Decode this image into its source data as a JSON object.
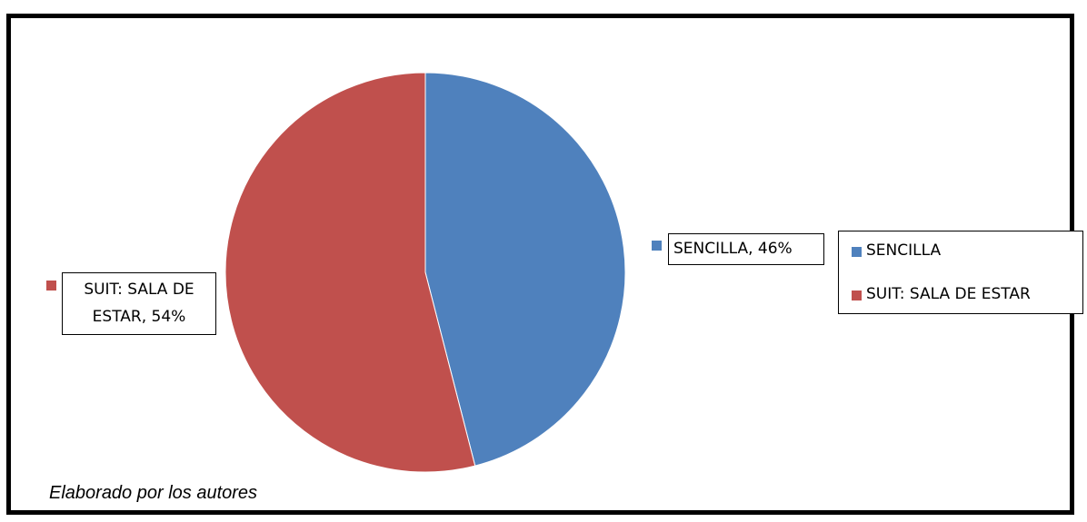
{
  "chart_data": {
    "type": "pie",
    "slices": [
      {
        "name": "SENCILLA",
        "value": 46,
        "label": "SENCILLA, 46%",
        "color": "#4F81BD"
      },
      {
        "name": "SUIT: SALA DE ESTAR",
        "value": 54,
        "label_line1": "SUIT: SALA DE",
        "label_line2": "ESTAR, 54%",
        "color": "#C0504D"
      }
    ],
    "legend": {
      "placement": "right",
      "entries": [
        "SENCILLA",
        "SUIT: SALA DE ESTAR"
      ]
    }
  },
  "footnote": "Elaborado por los autores"
}
